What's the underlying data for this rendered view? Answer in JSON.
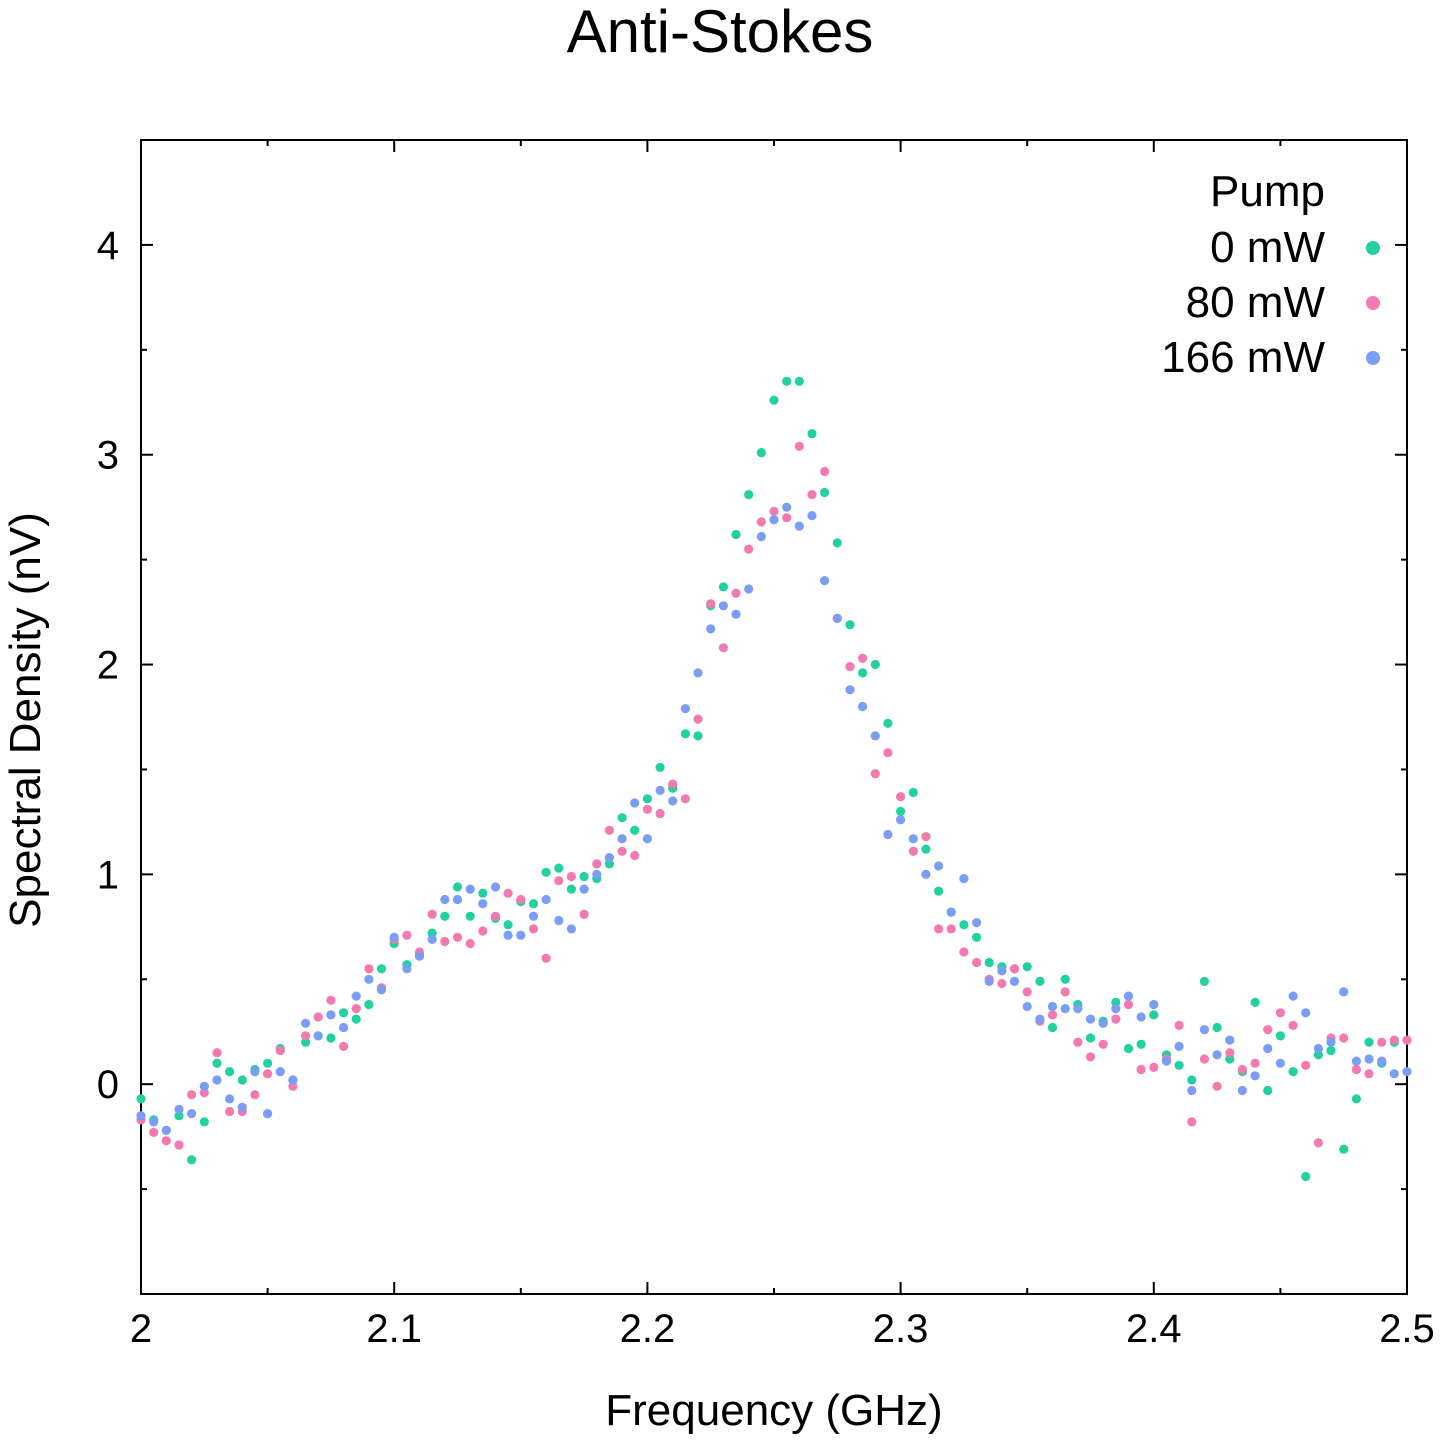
{
  "chart_data": {
    "type": "scatter",
    "title": "Anti-Stokes",
    "xlabel": "Frequency (GHz)",
    "ylabel": "Spectral Density (nV)",
    "xlim": [
      2.0,
      2.5
    ],
    "ylim": [
      -1.0,
      4.5
    ],
    "xticks": [
      "2",
      "2.1",
      "2.2",
      "2.3",
      "2.4",
      "2.5"
    ],
    "yticks": [
      "0",
      "1",
      "2",
      "3",
      "4"
    ],
    "grid": false,
    "legend": {
      "title": "Pump",
      "position": "top-right"
    },
    "series": [
      {
        "name": "0 mW",
        "color": "#22d1a0",
        "x": [
          2.0,
          2.005,
          2.01,
          2.015,
          2.02,
          2.025,
          2.03,
          2.035,
          2.04,
          2.045,
          2.05,
          2.055,
          2.06,
          2.065,
          2.07,
          2.075,
          2.08,
          2.085,
          2.09,
          2.095,
          2.1,
          2.105,
          2.11,
          2.115,
          2.12,
          2.125,
          2.13,
          2.135,
          2.14,
          2.145,
          2.15,
          2.155,
          2.16,
          2.165,
          2.17,
          2.175,
          2.18,
          2.185,
          2.19,
          2.195,
          2.2,
          2.205,
          2.21,
          2.215,
          2.22,
          2.225,
          2.23,
          2.235,
          2.24,
          2.245,
          2.25,
          2.255,
          2.26,
          2.265,
          2.27,
          2.275,
          2.28,
          2.285,
          2.29,
          2.295,
          2.3,
          2.305,
          2.31,
          2.315,
          2.32,
          2.325,
          2.33,
          2.335,
          2.34,
          2.345,
          2.35,
          2.355,
          2.36,
          2.365,
          2.37,
          2.375,
          2.38,
          2.385,
          2.39,
          2.395,
          2.4,
          2.405,
          2.41,
          2.415,
          2.42,
          2.425,
          2.43,
          2.435,
          2.44,
          2.445,
          2.45,
          2.455,
          2.46,
          2.465,
          2.47,
          2.475,
          2.48,
          2.485,
          2.49,
          2.495
        ],
        "y": [
          -0.07,
          -0.17,
          -0.22,
          -0.15,
          -0.36,
          -0.18,
          0.1,
          0.06,
          0.02,
          0.07,
          0.1,
          0.17,
          0.02,
          0.2,
          0.23,
          0.22,
          0.34,
          0.31,
          0.38,
          0.55,
          0.67,
          0.57,
          0.62,
          0.72,
          0.8,
          0.94,
          0.8,
          0.91,
          0.79,
          0.76,
          0.87,
          0.86,
          1.01,
          1.03,
          0.93,
          0.99,
          0.98,
          1.05,
          1.27,
          1.21,
          1.36,
          1.51,
          1.41,
          1.67,
          1.66,
          2.28,
          2.37,
          2.62,
          2.81,
          3.01,
          3.26,
          3.35,
          3.35,
          3.1,
          2.82,
          2.58,
          2.19,
          1.96,
          2.0,
          1.72,
          1.3,
          1.39,
          1.12,
          0.92,
          0.82,
          0.76,
          0.7,
          0.58,
          0.56,
          0.55,
          0.56,
          0.49,
          0.27,
          0.5,
          0.38,
          0.22,
          0.3,
          0.39,
          0.17,
          0.19,
          0.33,
          0.14,
          0.09,
          0.02,
          0.49,
          0.27,
          0.12,
          0.06,
          0.39,
          -0.03,
          0.23,
          0.06,
          -0.44,
          0.14,
          0.16,
          -0.31,
          -0.07,
          0.2,
          0.1,
          0.2
        ]
      },
      {
        "name": "80 mW",
        "color": "#f579b1",
        "x": [
          2.0,
          2.005,
          2.01,
          2.015,
          2.02,
          2.025,
          2.03,
          2.035,
          2.04,
          2.045,
          2.05,
          2.055,
          2.06,
          2.065,
          2.07,
          2.075,
          2.08,
          2.085,
          2.09,
          2.095,
          2.1,
          2.105,
          2.11,
          2.115,
          2.12,
          2.125,
          2.13,
          2.135,
          2.14,
          2.145,
          2.15,
          2.155,
          2.16,
          2.165,
          2.17,
          2.175,
          2.18,
          2.185,
          2.19,
          2.195,
          2.2,
          2.205,
          2.21,
          2.215,
          2.22,
          2.225,
          2.23,
          2.235,
          2.24,
          2.245,
          2.25,
          2.255,
          2.26,
          2.265,
          2.27,
          2.275,
          2.28,
          2.285,
          2.29,
          2.295,
          2.3,
          2.305,
          2.31,
          2.315,
          2.32,
          2.325,
          2.33,
          2.335,
          2.34,
          2.345,
          2.35,
          2.355,
          2.36,
          2.365,
          2.37,
          2.375,
          2.38,
          2.385,
          2.39,
          2.395,
          2.4,
          2.405,
          2.41,
          2.415,
          2.42,
          2.425,
          2.43,
          2.435,
          2.44,
          2.445,
          2.45,
          2.455,
          2.46,
          2.465,
          2.47,
          2.475,
          2.48,
          2.485,
          2.49,
          2.495,
          2.5
        ],
        "y": [
          -0.17,
          -0.23,
          -0.27,
          -0.29,
          -0.05,
          -0.04,
          0.15,
          -0.13,
          -0.13,
          -0.05,
          0.05,
          0.16,
          -0.01,
          0.23,
          0.32,
          0.4,
          0.18,
          0.36,
          0.55,
          0.46,
          0.69,
          0.71,
          0.63,
          0.81,
          0.68,
          0.7,
          0.67,
          0.73,
          0.8,
          0.91,
          0.88,
          0.74,
          0.6,
          0.97,
          0.99,
          0.81,
          1.05,
          1.21,
          1.11,
          1.09,
          1.31,
          1.29,
          1.43,
          1.36,
          1.74,
          2.29,
          2.08,
          2.34,
          2.55,
          2.68,
          2.73,
          2.7,
          3.04,
          2.81,
          2.92,
          2.22,
          1.99,
          2.03,
          1.48,
          1.58,
          1.37,
          1.11,
          1.18,
          0.74,
          0.74,
          0.63,
          0.58,
          0.5,
          0.48,
          0.55,
          0.44,
          0.3,
          0.33,
          0.44,
          0.2,
          0.13,
          0.19,
          0.31,
          0.38,
          0.07,
          0.08,
          0.12,
          0.28,
          -0.18,
          0.12,
          -0.01,
          0.15,
          0.07,
          0.1,
          0.26,
          0.34,
          0.28,
          0.09,
          -0.28,
          0.22,
          0.22,
          0.07,
          0.05,
          0.2,
          0.21,
          0.21
        ]
      },
      {
        "name": "166 mW",
        "color": "#7a9df5",
        "x": [
          2.0,
          2.005,
          2.01,
          2.015,
          2.02,
          2.025,
          2.03,
          2.035,
          2.04,
          2.045,
          2.05,
          2.055,
          2.06,
          2.065,
          2.07,
          2.075,
          2.08,
          2.085,
          2.09,
          2.095,
          2.1,
          2.105,
          2.11,
          2.115,
          2.12,
          2.125,
          2.13,
          2.135,
          2.14,
          2.145,
          2.15,
          2.155,
          2.16,
          2.165,
          2.17,
          2.175,
          2.18,
          2.185,
          2.19,
          2.195,
          2.2,
          2.205,
          2.21,
          2.215,
          2.22,
          2.225,
          2.23,
          2.235,
          2.24,
          2.245,
          2.25,
          2.255,
          2.26,
          2.265,
          2.27,
          2.275,
          2.28,
          2.285,
          2.29,
          2.295,
          2.3,
          2.305,
          2.31,
          2.315,
          2.32,
          2.325,
          2.33,
          2.335,
          2.34,
          2.345,
          2.35,
          2.355,
          2.36,
          2.365,
          2.37,
          2.375,
          2.38,
          2.385,
          2.39,
          2.395,
          2.4,
          2.405,
          2.41,
          2.415,
          2.42,
          2.425,
          2.43,
          2.435,
          2.44,
          2.445,
          2.45,
          2.455,
          2.46,
          2.465,
          2.47,
          2.475,
          2.48,
          2.485,
          2.49,
          2.495,
          2.5
        ],
        "y": [
          -0.15,
          -0.18,
          -0.22,
          -0.12,
          -0.14,
          -0.01,
          0.02,
          -0.07,
          -0.11,
          0.06,
          -0.14,
          0.06,
          0.02,
          0.29,
          0.23,
          0.33,
          0.27,
          0.42,
          0.5,
          0.45,
          0.7,
          0.55,
          0.61,
          0.69,
          0.88,
          0.88,
          0.93,
          0.86,
          0.94,
          0.71,
          0.71,
          0.8,
          0.88,
          0.78,
          0.74,
          0.93,
          1.0,
          1.08,
          1.17,
          1.34,
          1.17,
          1.4,
          1.35,
          1.79,
          1.96,
          2.17,
          2.28,
          2.24,
          2.36,
          2.61,
          2.69,
          2.75,
          2.66,
          2.71,
          2.4,
          2.22,
          1.88,
          1.8,
          1.66,
          1.19,
          1.26,
          1.17,
          1.0,
          1.04,
          0.82,
          0.98,
          0.77,
          0.49,
          0.54,
          0.49,
          0.37,
          0.31,
          0.37,
          0.36,
          0.36,
          0.31,
          0.29,
          0.36,
          0.42,
          0.32,
          0.38,
          0.11,
          0.18,
          -0.03,
          0.26,
          0.14,
          0.21,
          -0.03,
          0.04,
          0.17,
          0.1,
          0.42,
          0.34,
          0.17,
          0.2,
          0.44,
          0.11,
          0.12,
          0.11,
          0.05,
          0.06
        ]
      }
    ]
  }
}
